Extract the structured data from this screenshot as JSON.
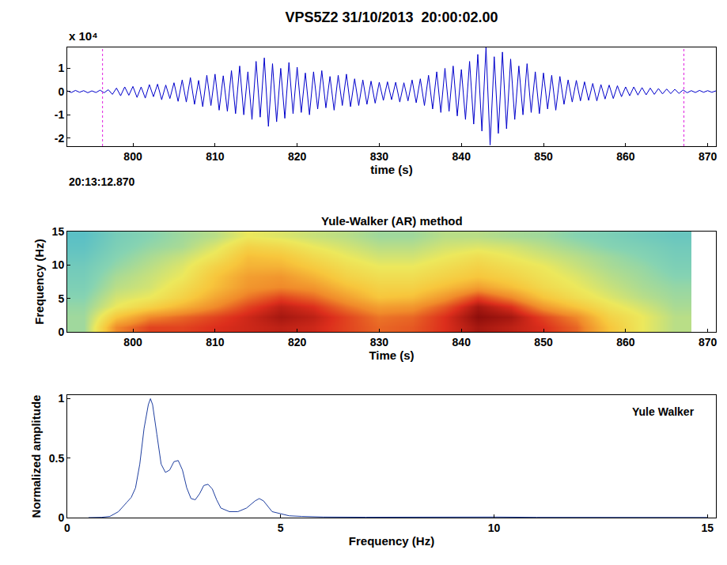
{
  "chart_data": [
    {
      "type": "line",
      "title": "VPS5Z2 31/10/2013  20:00:02.00",
      "x_label": "time (s)",
      "y_multiplier": "x 10⁴",
      "start_time": "20:13:12.870",
      "color": "#0000cc",
      "xlim": [
        792,
        871
      ],
      "ylim": [
        -2.35,
        1.9
      ],
      "xticks": [
        800,
        810,
        820,
        830,
        840,
        850,
        860,
        870
      ],
      "yticks": [
        -2,
        -1,
        0,
        1
      ],
      "pick_times": [
        796.3,
        867.1
      ],
      "x": [
        792,
        792.5,
        793,
        793.5,
        794,
        794.5,
        795,
        795.5,
        796,
        796.5,
        797,
        797.5,
        798,
        798.5,
        799,
        799.5,
        800,
        800.5,
        801,
        801.5,
        802,
        802.5,
        803,
        803.5,
        804,
        804.5,
        805,
        805.5,
        806,
        806.5,
        807,
        807.5,
        808,
        808.5,
        809,
        809.5,
        810,
        810.5,
        811,
        811.5,
        812,
        812.5,
        813,
        813.5,
        814,
        814.5,
        815,
        815.5,
        816,
        816.5,
        817,
        817.5,
        818,
        818.5,
        819,
        819.5,
        820,
        820.5,
        821,
        821.5,
        822,
        822.5,
        823,
        823.5,
        824,
        824.5,
        825,
        825.5,
        826,
        826.5,
        827,
        827.5,
        828,
        828.5,
        829,
        829.5,
        830,
        830.5,
        831,
        831.5,
        832,
        832.5,
        833,
        833.5,
        834,
        834.5,
        835,
        835.5,
        836,
        836.5,
        837,
        837.5,
        838,
        838.5,
        839,
        839.5,
        840,
        840.5,
        841,
        841.5,
        842,
        842.5,
        843,
        843.5,
        844,
        844.5,
        845,
        845.5,
        846,
        846.5,
        847,
        847.5,
        848,
        848.5,
        849,
        849.5,
        850,
        850.5,
        851,
        851.5,
        852,
        852.5,
        853,
        853.5,
        854,
        854.5,
        855,
        855.5,
        856,
        856.5,
        857,
        857.5,
        858,
        858.5,
        859,
        859.5,
        860,
        860.5,
        861,
        861.5,
        862,
        862.5,
        863,
        863.5,
        864,
        864.5,
        865,
        865.5,
        866,
        866.5,
        867,
        867.5,
        868,
        868.5,
        869,
        869.5,
        870,
        870.5,
        871
      ],
      "values": [
        0.03,
        -0.04,
        0.05,
        -0.03,
        0.04,
        -0.05,
        0.03,
        -0.04,
        0.06,
        -0.05,
        0.08,
        -0.12,
        0.15,
        -0.18,
        0.2,
        -0.16,
        0.22,
        -0.25,
        0.2,
        -0.28,
        0.3,
        -0.22,
        0.32,
        -0.35,
        0.28,
        -0.3,
        0.38,
        -0.42,
        0.5,
        -0.45,
        0.6,
        -0.55,
        0.48,
        -0.65,
        0.7,
        -0.6,
        0.75,
        -0.8,
        0.68,
        -0.85,
        0.9,
        -0.95,
        1.1,
        -1.0,
        0.85,
        -1.2,
        1.3,
        -1.1,
        1.45,
        -1.5,
        1.2,
        -1.3,
        1.0,
        -1.15,
        1.25,
        -0.95,
        1.05,
        -0.9,
        0.8,
        -1.0,
        0.85,
        -0.75,
        0.9,
        -0.7,
        0.65,
        -0.8,
        0.7,
        -0.6,
        0.75,
        -0.65,
        0.55,
        -0.6,
        0.5,
        -0.55,
        0.45,
        -0.5,
        0.4,
        -0.38,
        0.42,
        -0.35,
        0.4,
        -0.45,
        0.38,
        -0.4,
        0.5,
        -0.48,
        0.55,
        -0.6,
        0.7,
        -0.75,
        0.85,
        -0.9,
        1.0,
        -0.85,
        1.1,
        -1.05,
        0.95,
        -1.2,
        1.3,
        -1.4,
        1.6,
        -1.7,
        1.9,
        -2.3,
        1.5,
        -1.8,
        1.7,
        -1.6,
        1.4,
        -1.2,
        1.1,
        -1.0,
        1.2,
        -0.9,
        0.85,
        -0.95,
        0.8,
        -0.75,
        0.7,
        -0.8,
        0.65,
        -0.55,
        0.5,
        -0.45,
        0.48,
        -0.4,
        0.42,
        -0.38,
        0.35,
        -0.4,
        0.3,
        -0.32,
        0.28,
        -0.3,
        0.25,
        -0.22,
        0.2,
        -0.18,
        0.2,
        -0.15,
        0.17,
        -0.14,
        0.15,
        -0.12,
        0.13,
        -0.1,
        0.11,
        -0.09,
        0.1,
        -0.08,
        0.07,
        -0.05,
        0.04,
        -0.04,
        0.05,
        -0.03,
        0.04,
        -0.03,
        0.03
      ]
    },
    {
      "type": "heatmap",
      "title": "Yule-Walker (AR) method",
      "x_label": "Time (s)",
      "y_label": "Frequency (Hz)",
      "xlim": [
        792,
        871
      ],
      "ylim": [
        0,
        15
      ],
      "xticks": [
        800,
        810,
        820,
        830,
        840,
        850,
        860,
        870
      ],
      "yticks": [
        0,
        5,
        10,
        15
      ],
      "zlim": [
        0,
        1
      ],
      "x": [
        794,
        798,
        802,
        806,
        810,
        814,
        818,
        822,
        826,
        830,
        834,
        838,
        842,
        846,
        850,
        854,
        858,
        862,
        866
      ],
      "y": [
        0.75,
        2.25,
        3.75,
        5.25,
        6.75,
        8.25,
        9.75,
        11.25,
        12.75,
        14.25
      ],
      "cells": [
        [
          0.3,
          0.75,
          0.85,
          0.85,
          0.88,
          0.9,
          0.92,
          0.9,
          0.85,
          0.8,
          0.82,
          0.88,
          0.95,
          0.92,
          0.88,
          0.8,
          0.6,
          0.45,
          0.35
        ],
        [
          0.3,
          0.6,
          0.75,
          0.8,
          0.85,
          0.9,
          0.95,
          0.92,
          0.85,
          0.78,
          0.8,
          0.88,
          0.98,
          0.95,
          0.85,
          0.75,
          0.55,
          0.45,
          0.35
        ],
        [
          0.28,
          0.45,
          0.55,
          0.65,
          0.75,
          0.85,
          0.92,
          0.88,
          0.78,
          0.7,
          0.72,
          0.82,
          0.95,
          0.88,
          0.72,
          0.6,
          0.48,
          0.4,
          0.32
        ],
        [
          0.25,
          0.4,
          0.45,
          0.55,
          0.68,
          0.78,
          0.85,
          0.8,
          0.7,
          0.6,
          0.62,
          0.72,
          0.85,
          0.75,
          0.6,
          0.5,
          0.42,
          0.35,
          0.3
        ],
        [
          0.22,
          0.35,
          0.4,
          0.5,
          0.62,
          0.72,
          0.75,
          0.72,
          0.62,
          0.55,
          0.55,
          0.62,
          0.7,
          0.62,
          0.52,
          0.45,
          0.38,
          0.32,
          0.28
        ],
        [
          0.2,
          0.32,
          0.38,
          0.45,
          0.6,
          0.7,
          0.72,
          0.65,
          0.55,
          0.5,
          0.5,
          0.55,
          0.6,
          0.55,
          0.48,
          0.42,
          0.35,
          0.3,
          0.25
        ],
        [
          0.18,
          0.28,
          0.35,
          0.42,
          0.55,
          0.65,
          0.65,
          0.58,
          0.5,
          0.45,
          0.45,
          0.5,
          0.55,
          0.5,
          0.45,
          0.38,
          0.32,
          0.28,
          0.22
        ],
        [
          0.15,
          0.25,
          0.32,
          0.38,
          0.48,
          0.62,
          0.6,
          0.52,
          0.45,
          0.4,
          0.4,
          0.45,
          0.5,
          0.45,
          0.4,
          0.35,
          0.3,
          0.25,
          0.2
        ],
        [
          0.12,
          0.22,
          0.28,
          0.32,
          0.42,
          0.55,
          0.52,
          0.45,
          0.4,
          0.35,
          0.35,
          0.4,
          0.42,
          0.4,
          0.35,
          0.3,
          0.25,
          0.22,
          0.18
        ],
        [
          0.1,
          0.2,
          0.25,
          0.3,
          0.35,
          0.45,
          0.42,
          0.38,
          0.35,
          0.3,
          0.3,
          0.35,
          0.35,
          0.32,
          0.3,
          0.25,
          0.22,
          0.18,
          0.15
        ]
      ]
    },
    {
      "type": "line",
      "annotation": "Yule Walker",
      "x_label": "Frequency (Hz)",
      "y_label": "Normalized amplitude",
      "color": "#1f3fa0",
      "xlim": [
        0,
        15.2
      ],
      "ylim": [
        0,
        1.03
      ],
      "xticks": [
        0,
        5,
        10,
        15
      ],
      "yticks": [
        0,
        0.5,
        1
      ],
      "x": [
        0.5,
        0.8,
        1.0,
        1.2,
        1.4,
        1.5,
        1.6,
        1.7,
        1.8,
        1.9,
        1.95,
        2.0,
        2.1,
        2.2,
        2.3,
        2.4,
        2.5,
        2.6,
        2.7,
        2.8,
        2.9,
        3.0,
        3.1,
        3.2,
        3.3,
        3.4,
        3.5,
        3.6,
        3.8,
        4.0,
        4.2,
        4.4,
        4.5,
        4.6,
        4.8,
        5.0,
        5.2,
        5.5,
        6,
        7,
        8,
        8.5,
        9,
        10,
        11,
        12,
        13,
        14,
        15
      ],
      "values": [
        0,
        0.002,
        0.01,
        0.05,
        0.13,
        0.17,
        0.25,
        0.45,
        0.75,
        0.95,
        1.0,
        0.95,
        0.7,
        0.45,
        0.38,
        0.4,
        0.47,
        0.48,
        0.4,
        0.25,
        0.16,
        0.15,
        0.2,
        0.27,
        0.28,
        0.24,
        0.15,
        0.08,
        0.05,
        0.05,
        0.08,
        0.14,
        0.16,
        0.14,
        0.05,
        0.03,
        0.015,
        0.01,
        0.005,
        0.003,
        0.003,
        0.008,
        0.003,
        0.005,
        0.002,
        0.001,
        0.001,
        0.001,
        0.001
      ]
    }
  ]
}
